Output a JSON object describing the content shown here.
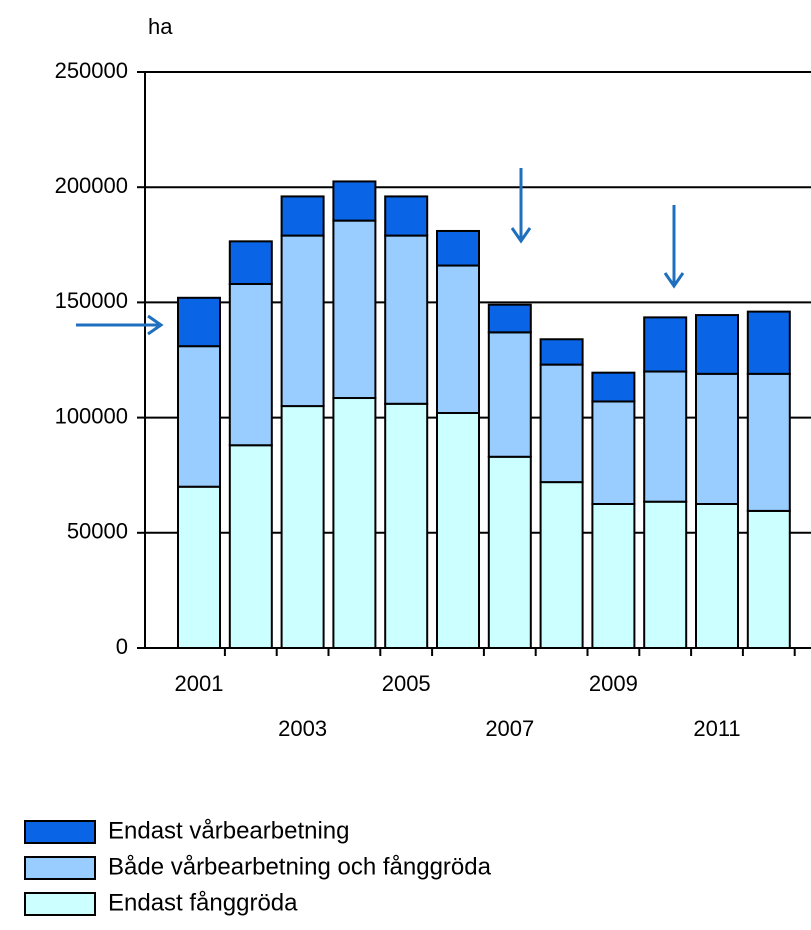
{
  "chart_data": {
    "type": "stacked_bar",
    "y_label": "ha",
    "categories": [
      "2001",
      null,
      "2003",
      null,
      "2005",
      null,
      "2007",
      null,
      "2009",
      null,
      "2011",
      null
    ],
    "series": [
      {
        "name": "Endast fånggröda",
        "color": "#ccffff",
        "values": [
          70000,
          88000,
          105000,
          108500,
          106000,
          102000,
          83000,
          72000,
          62500,
          63500,
          62500,
          59500
        ]
      },
      {
        "name": "Både vårbearbetning och fånggröda",
        "color": "#99ccff",
        "values": [
          61000,
          70000,
          74000,
          77000,
          73000,
          64000,
          54000,
          51000,
          44500,
          56500,
          56500,
          59500
        ]
      },
      {
        "name": "Endast vårbearbetning",
        "color": "#0a64e6",
        "values": [
          21000,
          18500,
          17000,
          17000,
          17000,
          15000,
          12000,
          11000,
          12500,
          23500,
          25500,
          27000
        ]
      }
    ],
    "ylim": [
      0,
      250000
    ],
    "yticks": [
      0,
      50000,
      100000,
      150000,
      200000,
      250000
    ],
    "grid": true
  }
}
